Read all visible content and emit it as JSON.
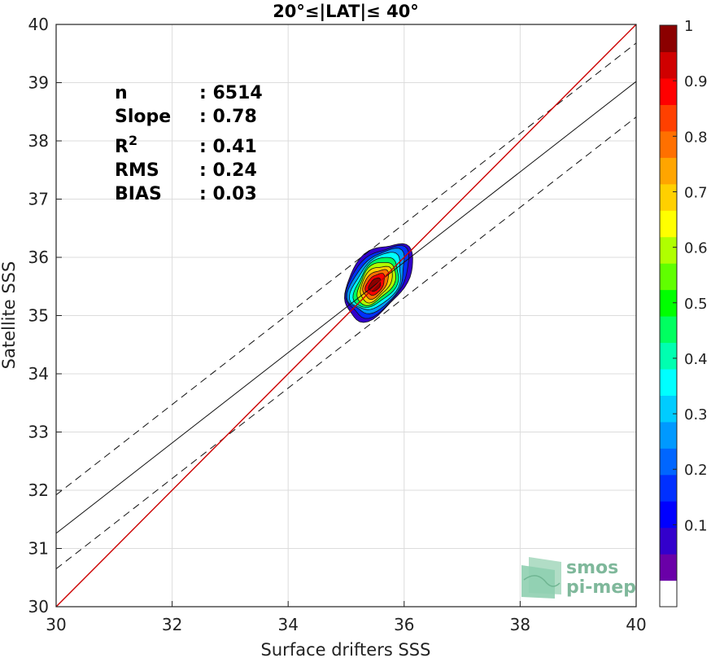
{
  "chart_data": {
    "type": "heatmap",
    "title": "20°≤|LAT|≤ 40°",
    "xlabel": "Surface drifters SSS",
    "ylabel": "Satellite SSS",
    "xlim": [
      30,
      40
    ],
    "ylim": [
      30,
      40
    ],
    "xticks": [
      "30",
      "32",
      "34",
      "36",
      "38",
      "40"
    ],
    "yticks": [
      "30",
      "31",
      "32",
      "33",
      "34",
      "35",
      "36",
      "37",
      "38",
      "39",
      "40"
    ],
    "grid": true,
    "stats": [
      {
        "label": "n",
        "sep": ": ",
        "value": "6514"
      },
      {
        "label": "Slope",
        "sep": ": ",
        "value": "0.78"
      },
      {
        "label": "R",
        "sup": "2",
        "sep": ": ",
        "value": "0.41"
      },
      {
        "label": "RMS",
        "sep": ": ",
        "value": "0.24"
      },
      {
        "label": "BIAS",
        "sep": ": ",
        "value": "0.03"
      }
    ],
    "lines": {
      "identity": {
        "from": [
          30,
          30
        ],
        "to": [
          40,
          40
        ],
        "color": "#cc0000"
      },
      "regression": {
        "from": [
          30,
          31.26
        ],
        "to": [
          40,
          39.02
        ]
      },
      "upper_band": {
        "from": [
          30,
          31.92
        ],
        "to": [
          40,
          39.68
        ]
      },
      "lower_band": {
        "from": [
          30,
          30.65
        ],
        "to": [
          40,
          38.41
        ]
      }
    },
    "density_center": [
      35.55,
      35.6
    ],
    "density_levels": [
      0.05,
      0.15,
      0.25,
      0.35,
      0.45,
      0.55,
      0.65,
      0.75,
      0.85,
      0.95
    ],
    "colorbar": {
      "ticks": [
        "0.1",
        "0.2",
        "0.3",
        "0.4",
        "0.5",
        "0.6",
        "0.7",
        "0.8",
        "0.9",
        "1"
      ],
      "colors": [
        "#ffffff",
        "#6a00a8",
        "#3300cc",
        "#0000ff",
        "#0030ff",
        "#0066ff",
        "#0099ff",
        "#00ccff",
        "#00ffff",
        "#00ffb0",
        "#00ff60",
        "#00ff00",
        "#60ff00",
        "#b0ff00",
        "#ffff00",
        "#ffd000",
        "#ffa500",
        "#ff7000",
        "#ff4000",
        "#ff0000",
        "#d00000",
        "#8b0000"
      ]
    }
  },
  "logo": {
    "line1": "smos",
    "line2": "pi-mep"
  }
}
